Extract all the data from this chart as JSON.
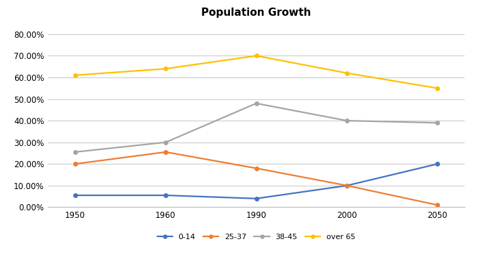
{
  "title": "Population Growth",
  "x_labels": [
    "1950",
    "1960",
    "1990",
    "2000",
    "2050"
  ],
  "series": {
    "0-14": [
      0.055,
      0.055,
      0.04,
      0.1,
      0.2
    ],
    "25-37": [
      0.2,
      0.255,
      0.18,
      0.1,
      0.01
    ],
    "38-45": [
      0.255,
      0.3,
      0.48,
      0.4,
      0.39
    ],
    "over 65": [
      0.61,
      0.64,
      0.7,
      0.62,
      0.55
    ]
  },
  "colors": {
    "0-14": "#4472C4",
    "25-37": "#ED7D31",
    "38-45": "#A5A5A5",
    "over 65": "#FFC000"
  },
  "ylim": [
    0.0,
    0.85
  ],
  "yticks": [
    0.0,
    0.1,
    0.2,
    0.3,
    0.4,
    0.5,
    0.6,
    0.7,
    0.8
  ],
  "background_color": "#ffffff",
  "plot_bg_color": "#f9f9f9",
  "grid_color": "#cccccc",
  "title_fontsize": 11,
  "legend_fontsize": 8,
  "tick_fontsize": 8.5
}
